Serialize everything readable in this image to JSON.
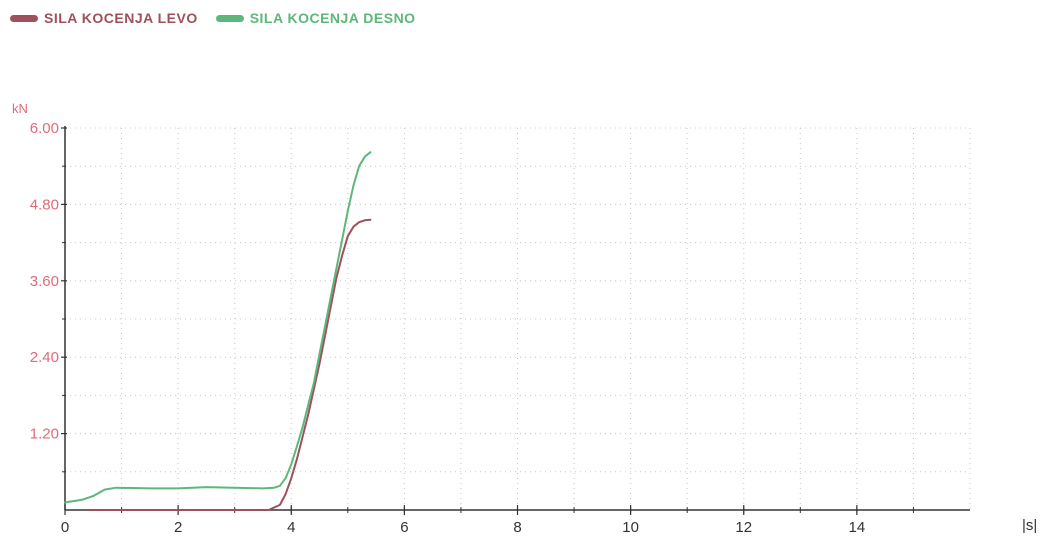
{
  "chart_data": {
    "type": "line",
    "title": "",
    "xlabel": "|s|",
    "ylabel": "kN",
    "xlim": [
      0,
      16
    ],
    "ylim": [
      0,
      6.0
    ],
    "x_ticks": [
      0,
      2,
      4,
      6,
      8,
      10,
      12,
      14
    ],
    "x_tick_labels": [
      "0",
      "2",
      "4",
      "6",
      "8",
      "10",
      "12",
      "14"
    ],
    "y_ticks": [
      1.2,
      2.4,
      3.6,
      4.8,
      6.0
    ],
    "y_tick_labels": [
      "1.20",
      "2.40",
      "3.60",
      "4.80",
      "6.00"
    ],
    "grid": true,
    "legend_position": "top-left",
    "series": [
      {
        "name": "SILA KOCENJA LEVO",
        "color": "#a0505a",
        "x": [
          0.4,
          1.0,
          2.0,
          3.0,
          3.6,
          3.8,
          3.9,
          4.0,
          4.1,
          4.2,
          4.3,
          4.4,
          4.5,
          4.6,
          4.7,
          4.8,
          4.9,
          5.0,
          5.1,
          5.2,
          5.3,
          5.4
        ],
        "y": [
          0.0,
          0.0,
          0.0,
          0.0,
          0.0,
          0.08,
          0.25,
          0.5,
          0.8,
          1.15,
          1.5,
          1.9,
          2.3,
          2.75,
          3.2,
          3.65,
          4.0,
          4.3,
          4.45,
          4.52,
          4.55,
          4.56
        ]
      },
      {
        "name": "SILA KOCENJA DESNO",
        "color": "#5cb87a",
        "x": [
          0.0,
          0.15,
          0.3,
          0.5,
          0.7,
          0.9,
          1.5,
          2.0,
          2.5,
          3.0,
          3.5,
          3.7,
          3.8,
          3.9,
          4.0,
          4.1,
          4.2,
          4.3,
          4.4,
          4.5,
          4.6,
          4.7,
          4.8,
          4.9,
          5.0,
          5.1,
          5.2,
          5.3,
          5.4
        ],
        "y": [
          0.12,
          0.14,
          0.16,
          0.22,
          0.32,
          0.35,
          0.34,
          0.34,
          0.36,
          0.35,
          0.34,
          0.35,
          0.38,
          0.5,
          0.72,
          1.0,
          1.3,
          1.65,
          2.0,
          2.45,
          2.9,
          3.35,
          3.8,
          4.25,
          4.7,
          5.1,
          5.4,
          5.55,
          5.62
        ]
      }
    ]
  }
}
